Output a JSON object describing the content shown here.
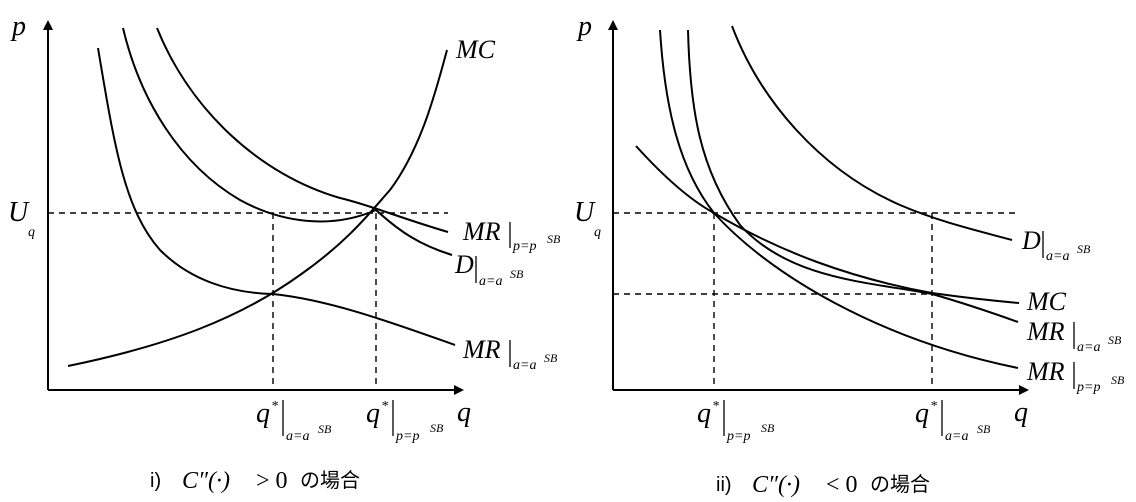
{
  "left_panel": {
    "axis_y": "p",
    "axis_x": "q",
    "uq_main": "U",
    "uq_sub": "q",
    "mc": "MC",
    "mr_p_main": "MR",
    "mr_p_sub": "p=p",
    "mr_p_sup": "SB",
    "d_main": "D",
    "d_sub": "a=a",
    "d_sup": "SB",
    "mr_a_main": "MR",
    "mr_a_sub": "a=a",
    "mr_a_sup": "SB",
    "qa_main": "q",
    "qa_star": "*",
    "qa_sub": "a=a",
    "qa_sup": "SB",
    "qp_main": "q",
    "qp_star": "*",
    "qp_sub": "p=p",
    "qp_sup": "SB",
    "caption_num": "i)",
    "caption_expr": "C″(·)",
    "caption_rel": "> 0",
    "caption_suffix": "の場合"
  },
  "right_panel": {
    "axis_y": "p",
    "axis_x": "q",
    "uq_main": "U",
    "uq_sub": "q",
    "d_main": "D",
    "d_sub": "a=a",
    "d_sup": "SB",
    "mc": "MC",
    "mr_a_main": "MR",
    "mr_a_sub": "a=a",
    "mr_a_sup": "SB",
    "mr_p_main": "MR",
    "mr_p_sub": "p=p",
    "mr_p_sup": "SB",
    "qp_main": "q",
    "qp_star": "*",
    "qp_sub": "p=p",
    "qp_sup": "SB",
    "qa_main": "q",
    "qa_star": "*",
    "qa_sub": "a=a",
    "qa_sup": "SB",
    "caption_num": "ii)",
    "caption_expr": "C″(·)",
    "caption_rel": "< 0",
    "caption_suffix": "の場合"
  }
}
